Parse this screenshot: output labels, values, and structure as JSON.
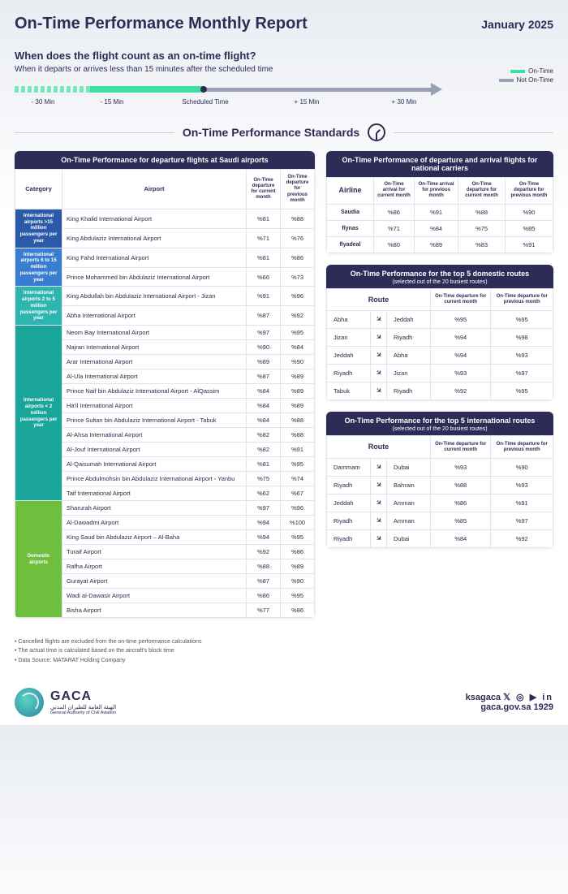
{
  "colors": {
    "header_bg": "#2d2c57",
    "on_time": "#3de2a1",
    "not_on_time": "#9aa0b4",
    "cat_intl_15": "#2a5aa8",
    "cat_intl_6_15": "#3a7dd0",
    "cat_intl_2_5": "#2fb5b0",
    "cat_intl_lt2": "#19a59a",
    "cat_domestic": "#6fbf3f"
  },
  "header": {
    "title": "On-Time Performance Monthly Report",
    "month": "January 2025"
  },
  "intro": {
    "question": "When does the flight count as an on-time flight?",
    "answer": "When it departs or arrives less than 15 minutes after the scheduled time",
    "legend_on": "On-Time",
    "legend_off": "Not On-Time",
    "labels": [
      "- 30 Min",
      "- 15 Min",
      "Scheduled Time",
      "+ 15 Min",
      "+ 30 Min"
    ]
  },
  "section_title": "On-Time Performance Standards",
  "airports_card": {
    "title": "On-Time Performance for departure flights at Saudi airports",
    "cols": [
      "Category",
      "Airport",
      "On-Time departure for current month",
      "On-Time departure for previous month"
    ],
    "categories": [
      {
        "label": "International airports\n>15 million passengers per year",
        "color": "#2a5aa8",
        "rows": [
          {
            "airport": "King Khalid International Airport",
            "cur": "%81",
            "prev": "%88"
          },
          {
            "airport": "King Abdulaziz International Airport",
            "cur": "%71",
            "prev": "%76"
          }
        ]
      },
      {
        "label": "International airports\n6 to 15 million passengers per year",
        "color": "#3a7dd0",
        "rows": [
          {
            "airport": "King Fahd International Airport",
            "cur": "%81",
            "prev": "%86"
          },
          {
            "airport": "Prince Mohammed bin Abdulaziz International Airport",
            "cur": "%66",
            "prev": "%73"
          }
        ]
      },
      {
        "label": "International airports\n2 to 5 million passengers per year",
        "color": "#2fb5b0",
        "rows": [
          {
            "airport": "King Abdullah bin Abdulaziz International Airport - Jizan",
            "cur": "%91",
            "prev": "%96"
          },
          {
            "airport": "Abha International Airport",
            "cur": "%87",
            "prev": "%92"
          }
        ]
      },
      {
        "label": "International airports\n< 2 million passengers per year",
        "color": "#19a59a",
        "rows": [
          {
            "airport": "Neom Bay International Airport",
            "cur": "%97",
            "prev": "%95"
          },
          {
            "airport": "Najran International Airport",
            "cur": "%90",
            "prev": "%84"
          },
          {
            "airport": "Arar International Airport",
            "cur": "%89",
            "prev": "%90"
          },
          {
            "airport": "Al-Ula International Airport",
            "cur": "%87",
            "prev": "%89"
          },
          {
            "airport": "Prince Naif bin Abdulaziz International Airport - AlQassim",
            "cur": "%84",
            "prev": "%89"
          },
          {
            "airport": "Ha'il International Airport",
            "cur": "%84",
            "prev": "%89"
          },
          {
            "airport": "Prince Sultan bin Abdulaziz International Airport - Tabuk",
            "cur": "%84",
            "prev": "%88"
          },
          {
            "airport": "Al-Ahsa International Airport",
            "cur": "%82",
            "prev": "%88"
          },
          {
            "airport": "Al-Jouf International Airport",
            "cur": "%82",
            "prev": "%91"
          },
          {
            "airport": "Al-Qaisumah International Airport",
            "cur": "%81",
            "prev": "%95"
          },
          {
            "airport": "Prince Abdulmohsin bin Abdulaziz International Airport - Yanbu",
            "cur": "%75",
            "prev": "%74"
          },
          {
            "airport": "Taif International Airport",
            "cur": "%62",
            "prev": "%67"
          }
        ]
      },
      {
        "label": "Domestic airports",
        "color": "#6fbf3f",
        "rows": [
          {
            "airport": "Sharurah Airport",
            "cur": "%97",
            "prev": "%96"
          },
          {
            "airport": "Al-Dawadmi Airport",
            "cur": "%94",
            "prev": "%100"
          },
          {
            "airport": "King Saud bin Abdulaziz Airport – Al-Baha",
            "cur": "%94",
            "prev": "%95"
          },
          {
            "airport": "Turaif Airport",
            "cur": "%92",
            "prev": "%86"
          },
          {
            "airport": "Rafha Airport",
            "cur": "%88",
            "prev": "%89"
          },
          {
            "airport": "Gurayat Airport",
            "cur": "%87",
            "prev": "%90"
          },
          {
            "airport": "Wadi al-Dawasir Airport",
            "cur": "%86",
            "prev": "%95"
          },
          {
            "airport": "Bisha Airport",
            "cur": "%77",
            "prev": "%86"
          }
        ]
      }
    ]
  },
  "carriers_card": {
    "title": "On-Time Performance of departure and arrival flights for national carriers",
    "cols": [
      "Airline",
      "On-Time arrival for current month",
      "On-Time arrival for previous month",
      "On-Time departure for current month",
      "On-Time departure for previous month"
    ],
    "rows": [
      {
        "airline": "Saudia",
        "a_cur": "%86",
        "a_prev": "%91",
        "d_cur": "%88",
        "d_prev": "%90"
      },
      {
        "airline": "flynas",
        "a_cur": "%71",
        "a_prev": "%84",
        "d_cur": "%75",
        "d_prev": "%85"
      },
      {
        "airline": "flyadeal",
        "a_cur": "%80",
        "a_prev": "%89",
        "d_cur": "%83",
        "d_prev": "%91"
      }
    ]
  },
  "domestic_routes": {
    "title": "On-Time Performance for the top 5 domestic routes",
    "subtitle": "(selected out of the 20 busiest routes)",
    "cols": [
      "Route",
      "On-Time departure for current month",
      "On-Time departure for previous month"
    ],
    "rows": [
      {
        "from": "Abha",
        "to": "Jeddah",
        "cur": "%95",
        "prev": "%95"
      },
      {
        "from": "Jizan",
        "to": "Riyadh",
        "cur": "%94",
        "prev": "%98"
      },
      {
        "from": "Jeddah",
        "to": "Abha",
        "cur": "%94",
        "prev": "%93"
      },
      {
        "from": "Riyadh",
        "to": "Jizan",
        "cur": "%93",
        "prev": "%97"
      },
      {
        "from": "Tabuk",
        "to": "Riyadh",
        "cur": "%92",
        "prev": "%95"
      }
    ]
  },
  "intl_routes": {
    "title": "On-Time Performance for the top 5 international routes",
    "subtitle": "(selected out of the 20 busiest routes)",
    "cols": [
      "Route",
      "On-Time departure for current month",
      "On-Time departure for previous month"
    ],
    "rows": [
      {
        "from": "Dammam",
        "to": "Dubai",
        "cur": "%93",
        "prev": "%90"
      },
      {
        "from": "Riyadh",
        "to": "Bahrain",
        "cur": "%88",
        "prev": "%93"
      },
      {
        "from": "Jeddah",
        "to": "Amman",
        "cur": "%86",
        "prev": "%91"
      },
      {
        "from": "Riyadh",
        "to": "Amman",
        "cur": "%85",
        "prev": "%97"
      },
      {
        "from": "Riyadh",
        "to": "Dubai",
        "cur": "%84",
        "prev": "%92"
      }
    ]
  },
  "footnotes": [
    "• Cancelled flights are excluded from the on-time performance calculations",
    "• The actual time is calculated based on the aircraft's block time",
    "• Data Source: MATARAT Holding Company"
  ],
  "footer": {
    "org_abbr": "GACA",
    "org_en": "General Authority of Civil Aviation",
    "org_ar": "الهيئة العامة للطيران المدني",
    "handle": "ksagaca",
    "site": "gaca.gov.sa 1929"
  }
}
